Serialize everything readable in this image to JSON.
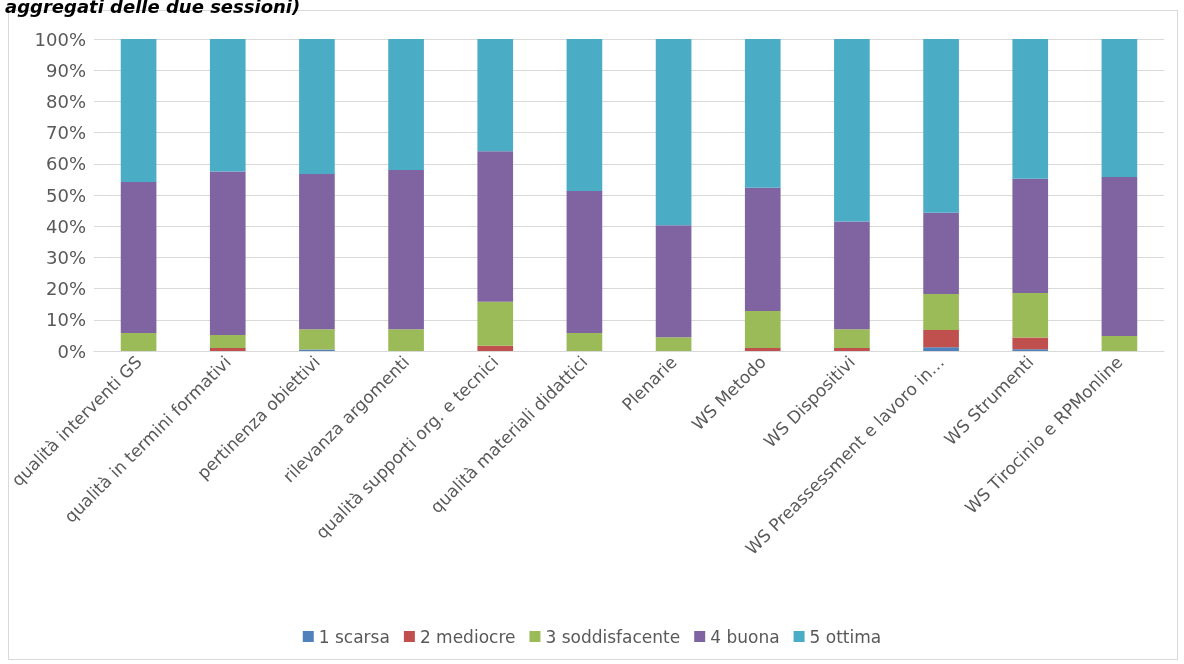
{
  "chart_data": {
    "type": "bar",
    "stacked": true,
    "title": "aggregati delle due sessioni)",
    "categories": [
      "qualità interventi GS",
      "qualità in termini formativi",
      "pertinenza obiettivi",
      "rilevanza argomenti",
      "qualità supporti org. e tecnici",
      "qualità materiali didattici",
      "Plenarie",
      "WS Metodo",
      "WS Dispositivi",
      "WS Preassessment e lavoro in…",
      "WS Strumenti",
      "WS Tirocinio e RPMonline"
    ],
    "series": [
      {
        "name": "1 scarsa",
        "color": "#4f81bd",
        "values": [
          0,
          0,
          0.5,
          0,
          0,
          0,
          0,
          0,
          0,
          1.2,
          0.6,
          0
        ]
      },
      {
        "name": "2 mediocre",
        "color": "#c0504d",
        "values": [
          0,
          1,
          0,
          0,
          1.7,
          0,
          0,
          1,
          1,
          5.5,
          3.7,
          0
        ]
      },
      {
        "name": "3 soddisfacente",
        "color": "#9bbb59",
        "values": [
          5.8,
          4.1,
          6.5,
          7,
          14.1,
          5.8,
          4.4,
          11.8,
          6,
          11.6,
          14.3,
          4.8
        ]
      },
      {
        "name": "4 buona",
        "color": "#8064a2",
        "values": [
          48.4,
          52.4,
          49.7,
          51,
          48.2,
          45.5,
          35.9,
          39.5,
          34.5,
          26,
          36.6,
          51
        ]
      },
      {
        "name": "5 ottima",
        "color": "#4bacc6",
        "values": [
          45.8,
          42.5,
          43.3,
          42,
          36,
          48.7,
          59.7,
          47.7,
          58.5,
          55.7,
          44.8,
          44.2
        ]
      }
    ],
    "ylim": [
      0,
      100
    ],
    "yticks": [
      {
        "value": 0,
        "label": "0%"
      },
      {
        "value": 10,
        "label": "10%"
      },
      {
        "value": 20,
        "label": "20%"
      },
      {
        "value": 30,
        "label": "30%"
      },
      {
        "value": 40,
        "label": "40%"
      },
      {
        "value": 50,
        "label": "50%"
      },
      {
        "value": 60,
        "label": "60%"
      },
      {
        "value": 70,
        "label": "70%"
      },
      {
        "value": 80,
        "label": "80%"
      },
      {
        "value": 90,
        "label": "90%"
      },
      {
        "value": 100,
        "label": "100%"
      }
    ],
    "grid": "y",
    "legend": "bottom"
  }
}
